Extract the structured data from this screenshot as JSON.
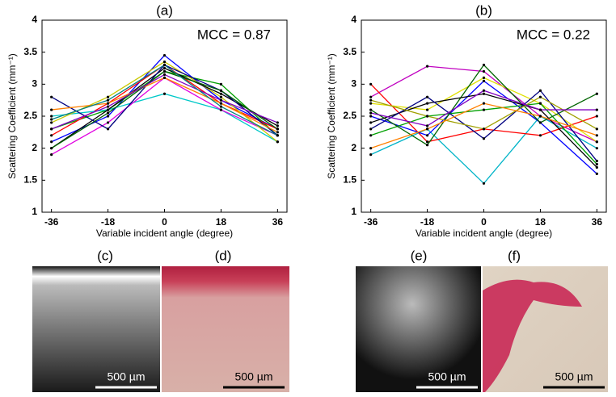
{
  "chart_data": [
    {
      "type": "line",
      "title": "(a)",
      "annotation": "MCC = 0.87",
      "x_label": "Variable incident angle (degree)",
      "y_label": "Scattering Coefficient (mm⁻¹)",
      "x": [
        -36,
        -18,
        0,
        18,
        36
      ],
      "xlim": [
        -39,
        39
      ],
      "xticks": [
        -36,
        -18,
        0,
        18,
        36
      ],
      "ylim": [
        1,
        4
      ],
      "yticks": [
        1,
        1.5,
        2,
        2.5,
        3,
        3.5,
        4
      ],
      "grid": false,
      "marker_color": "#000000",
      "series": [
        {
          "color": "#0000ff",
          "values": [
            2.1,
            2.5,
            3.45,
            2.75,
            2.3
          ]
        },
        {
          "color": "#00a000",
          "values": [
            2.3,
            2.6,
            3.2,
            3.0,
            2.2
          ]
        },
        {
          "color": "#ff0000",
          "values": [
            2.2,
            2.7,
            3.3,
            2.7,
            2.3
          ]
        },
        {
          "color": "#00c8c8",
          "values": [
            2.5,
            2.6,
            2.85,
            2.6,
            2.1
          ]
        },
        {
          "color": "#e000e0",
          "values": [
            1.9,
            2.4,
            3.1,
            2.6,
            2.2
          ]
        },
        {
          "color": "#c8c800",
          "values": [
            2.4,
            2.8,
            3.35,
            2.8,
            2.1
          ]
        },
        {
          "color": "#000000",
          "values": [
            2.0,
            2.6,
            3.25,
            2.85,
            2.35
          ]
        },
        {
          "color": "#000080",
          "values": [
            2.8,
            2.3,
            3.3,
            2.9,
            2.2
          ]
        },
        {
          "color": "#ff8000",
          "values": [
            2.6,
            2.7,
            3.1,
            2.7,
            2.25
          ]
        },
        {
          "color": "#006400",
          "values": [
            2.0,
            2.55,
            3.2,
            2.9,
            2.3
          ]
        },
        {
          "color": "#8000c0",
          "values": [
            2.3,
            2.65,
            3.15,
            2.75,
            2.4
          ]
        },
        {
          "color": "#008080",
          "values": [
            2.45,
            2.75,
            3.3,
            2.65,
            2.2
          ]
        }
      ]
    },
    {
      "type": "line",
      "title": "(b)",
      "annotation": "MCC = 0.22",
      "x_label": "Variable incident angle (degree)",
      "y_label": "Scattering Coefficient (mm⁻¹)",
      "x": [
        -36,
        -18,
        0,
        18,
        36
      ],
      "xlim": [
        -39,
        39
      ],
      "xticks": [
        -36,
        -18,
        0,
        18,
        36
      ],
      "ylim": [
        1,
        4
      ],
      "yticks": [
        1,
        1.5,
        2,
        2.5,
        3,
        3.5,
        4
      ],
      "grid": false,
      "marker_color": "#000000",
      "series": [
        {
          "color": "#c000c0",
          "values": [
            2.8,
            3.28,
            3.2,
            2.5,
            2.1
          ]
        },
        {
          "color": "#00b4c8",
          "values": [
            1.9,
            2.3,
            1.45,
            2.5,
            2.0
          ]
        },
        {
          "color": "#ff0000",
          "values": [
            3.0,
            2.1,
            2.3,
            2.2,
            2.5
          ]
        },
        {
          "color": "#e0e000",
          "values": [
            2.7,
            2.6,
            3.1,
            2.7,
            2.1
          ]
        },
        {
          "color": "#0000ff",
          "values": [
            2.5,
            2.2,
            3.05,
            2.4,
            1.6
          ]
        },
        {
          "color": "#00a000",
          "values": [
            2.2,
            2.5,
            2.6,
            2.7,
            1.75
          ]
        },
        {
          "color": "#006400",
          "values": [
            2.6,
            2.05,
            3.3,
            2.4,
            2.85
          ]
        },
        {
          "color": "#000000",
          "values": [
            2.4,
            2.7,
            2.85,
            2.6,
            1.7
          ]
        },
        {
          "color": "#000080",
          "values": [
            2.3,
            2.8,
            2.15,
            2.9,
            1.8
          ]
        },
        {
          "color": "#a0a000",
          "values": [
            2.75,
            2.5,
            2.3,
            2.8,
            2.3
          ]
        },
        {
          "color": "#ff8000",
          "values": [
            2.0,
            2.3,
            2.7,
            2.5,
            2.2
          ]
        },
        {
          "color": "#8000c0",
          "values": [
            2.55,
            2.35,
            2.9,
            2.6,
            2.6
          ]
        }
      ]
    }
  ],
  "panels": [
    {
      "label": "(c)",
      "scale_bar": "500 µm"
    },
    {
      "label": "(d)",
      "scale_bar": "500 µm"
    },
    {
      "label": "(e)",
      "scale_bar": "500 µm"
    },
    {
      "label": "(f)",
      "scale_bar": "500 µm"
    }
  ]
}
